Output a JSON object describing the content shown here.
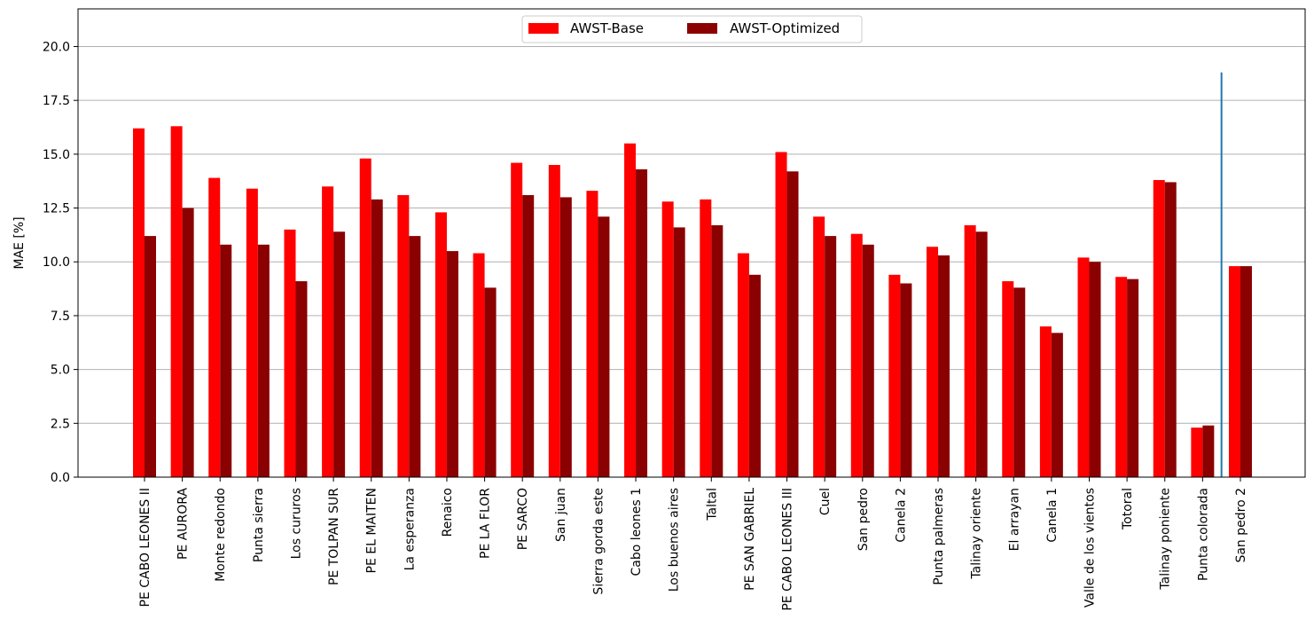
{
  "chart_data": {
    "type": "bar",
    "title": "",
    "xlabel": "",
    "ylabel": "MAE [%]",
    "ylim": [
      0,
      21.75
    ],
    "yticks": [
      0.0,
      2.5,
      5.0,
      7.5,
      10.0,
      12.5,
      15.0,
      17.5,
      20.0
    ],
    "ytick_labels": [
      "0.0",
      "2.5",
      "5.0",
      "7.5",
      "10.0",
      "12.5",
      "15.0",
      "17.5",
      "20.0"
    ],
    "grid": "horizontal",
    "legend_position": "top-center",
    "categories": [
      "PE CABO LEONES II",
      "PE AURORA",
      "Monte redondo",
      "Punta sierra",
      "Los cururos",
      "PE TOLPAN SUR",
      "PE EL MAITEN",
      "La esperanza",
      "Renaico",
      "PE LA FLOR",
      "PE SARCO",
      "San juan",
      "Sierra gorda este",
      "Cabo leones 1",
      "Los buenos aires",
      "Taltal",
      "PE SAN GABRIEL",
      "PE CABO LEONES III",
      "Cuel",
      "San pedro",
      "Canela 2",
      "Punta palmeras",
      "Talinay oriente",
      "El arrayan",
      "Canela 1",
      "Valle de los vientos",
      "Totoral",
      "Talinay poniente",
      "Punta colorada",
      "San pedro 2"
    ],
    "series": [
      {
        "name": "AWST-Base",
        "color": "#ff0000",
        "values": [
          16.2,
          16.3,
          13.9,
          13.4,
          11.5,
          13.5,
          14.8,
          13.1,
          12.3,
          10.4,
          14.6,
          14.5,
          13.3,
          15.5,
          12.8,
          12.9,
          10.4,
          15.1,
          12.1,
          11.3,
          9.4,
          10.7,
          11.7,
          9.1,
          7.0,
          10.2,
          9.3,
          13.8,
          2.3,
          9.8
        ]
      },
      {
        "name": "AWST-Optimized",
        "color": "#8b0000",
        "values": [
          11.2,
          12.5,
          10.8,
          10.8,
          9.1,
          11.4,
          12.9,
          11.2,
          10.5,
          8.8,
          13.1,
          13.0,
          12.1,
          14.3,
          11.6,
          11.7,
          9.4,
          14.2,
          11.2,
          10.8,
          9.0,
          10.3,
          11.4,
          8.8,
          6.7,
          10.0,
          9.2,
          13.7,
          2.4,
          9.8
        ]
      }
    ],
    "annotation_line": {
      "between_categories": [
        "Punta colorada",
        "San pedro 2"
      ],
      "y_top": 18.8,
      "color": "#1f77b4"
    }
  }
}
